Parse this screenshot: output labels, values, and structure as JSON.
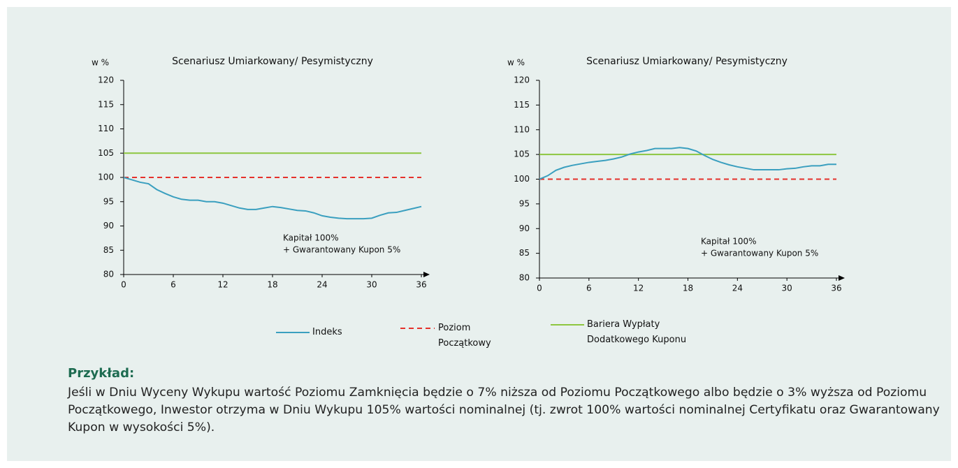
{
  "chart_data": [
    {
      "type": "line",
      "title": "Scenariusz Umiarkowany/ Pesymistyczny",
      "y_label": "w %",
      "annotation": [
        "Kapitał 100%",
        "+ Gwarantowany Kupon 5%"
      ],
      "xlim": [
        0,
        36
      ],
      "xticks": [
        0,
        6,
        12,
        18,
        24,
        30,
        36
      ],
      "ylim": [
        80,
        120
      ],
      "yticks": [
        80,
        85,
        90,
        95,
        100,
        105,
        110,
        115,
        120
      ],
      "series": [
        {
          "name": "Indeks",
          "color": "#3a9fbf",
          "dash": false,
          "x": [
            0,
            1,
            2,
            3,
            4,
            5,
            6,
            7,
            8,
            9,
            10,
            11,
            12,
            13,
            14,
            15,
            16,
            17,
            18,
            19,
            20,
            21,
            22,
            23,
            24,
            25,
            26,
            27,
            28,
            29,
            30,
            31,
            32,
            33,
            34,
            35,
            36
          ],
          "values": [
            100,
            99.5,
            99,
            98.7,
            97.5,
            96.7,
            96,
            95.5,
            95.3,
            95.3,
            95,
            95,
            94.7,
            94.2,
            93.7,
            93.4,
            93.4,
            93.7,
            94,
            93.8,
            93.5,
            93.2,
            93.1,
            92.7,
            92.1,
            91.8,
            91.6,
            91.5,
            91.5,
            91.5,
            91.6,
            92.2,
            92.7,
            92.8,
            93.2,
            93.6,
            94
          ]
        },
        {
          "name": "Poziom Początkowy",
          "color": "#e5312b",
          "dash": true,
          "x": [
            0,
            36
          ],
          "values": [
            100,
            100
          ]
        },
        {
          "name": "Bariera Wypłaty Dodatkowego Kuponu",
          "color": "#8dc63f",
          "dash": false,
          "x": [
            0,
            36
          ],
          "values": [
            105,
            105
          ]
        }
      ]
    },
    {
      "type": "line",
      "title": "Scenariusz Umiarkowany/ Pesymistyczny",
      "y_label": "w %",
      "annotation": [
        "Kapitał 100%",
        "+ Gwarantowany Kupon 5%"
      ],
      "xlim": [
        0,
        36
      ],
      "xticks": [
        0,
        6,
        12,
        18,
        24,
        30,
        36
      ],
      "ylim": [
        80,
        120
      ],
      "yticks": [
        80,
        85,
        90,
        95,
        100,
        105,
        110,
        115,
        120
      ],
      "series": [
        {
          "color": "#3a9fbf",
          "dash": false,
          "x": [
            0,
            1,
            2,
            3,
            4,
            5,
            6,
            7,
            8,
            9,
            10,
            11,
            12,
            13,
            14,
            15,
            16,
            17,
            18,
            19,
            20,
            21,
            22,
            23,
            24,
            25,
            26,
            27,
            28,
            29,
            30,
            31,
            32,
            33,
            34,
            35,
            36
          ],
          "values": [
            100,
            100.7,
            101.8,
            102.4,
            102.8,
            103.1,
            103.4,
            103.6,
            103.8,
            104.1,
            104.5,
            105.1,
            105.5,
            105.8,
            106.2,
            106.2,
            106.2,
            106.4,
            106.2,
            105.7,
            104.8,
            104,
            103.4,
            102.9,
            102.5,
            102.2,
            101.9,
            101.9,
            101.9,
            101.9,
            102.1,
            102.2,
            102.5,
            102.7,
            102.7,
            103,
            103
          ]
        },
        {
          "color": "#e5312b",
          "dash": true,
          "x": [
            0,
            36
          ],
          "values": [
            100,
            100
          ]
        },
        {
          "color": "#8dc63f",
          "dash": false,
          "x": [
            0,
            36
          ],
          "values": [
            105,
            105
          ]
        }
      ]
    }
  ],
  "example": {
    "heading": "Przykład:",
    "text": "Jeśli w Dniu Wyceny Wykupu wartość Poziomu Zamknięcia będzie o 7% niższa od Poziomu Początkowego albo będzie o 3% wyższa od Poziomu Początkowego, Inwestor otrzyma w Dniu Wykupu 105% wartości nominalnej (tj. zwrot 100% wartości nominalnej Certyfikatu oraz Gwarantowany Kupon w wysokości 5%)."
  }
}
